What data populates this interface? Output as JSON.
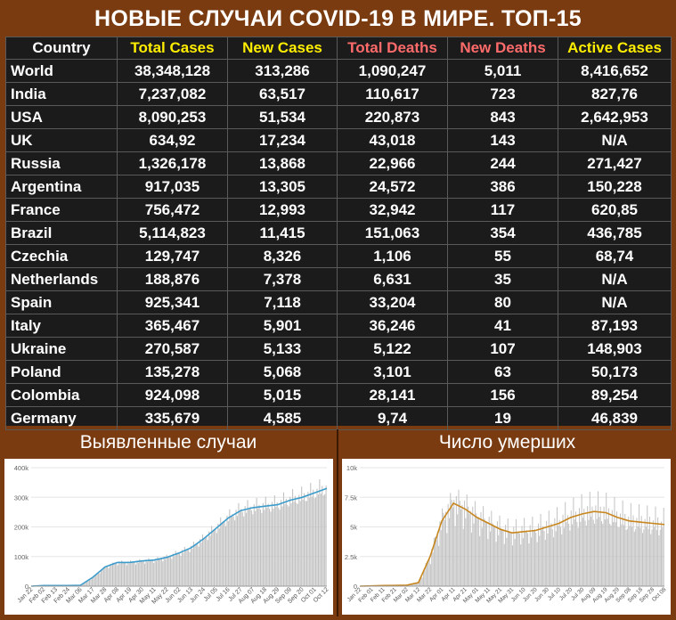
{
  "title": "НОВЫЕ СЛУЧАИ COVID-19 В МИРЕ. ТОП-15",
  "table": {
    "headers": [
      "Country",
      "Total Cases",
      "New Cases",
      "Total Deaths",
      "New Deaths",
      "Active Cases"
    ],
    "rows": [
      [
        "World",
        "38,348,128",
        "313,286",
        "1,090,247",
        "5,011",
        "8,416,652"
      ],
      [
        "India",
        "7,237,082",
        "63,517",
        "110,617",
        "723",
        "827,76"
      ],
      [
        "USA",
        "8,090,253",
        "51,534",
        "220,873",
        "843",
        "2,642,953"
      ],
      [
        "UK",
        "634,92",
        "17,234",
        "43,018",
        "143",
        "N/A"
      ],
      [
        "Russia",
        "1,326,178",
        "13,868",
        "22,966",
        "244",
        "271,427"
      ],
      [
        "Argentina",
        "917,035",
        "13,305",
        "24,572",
        "386",
        "150,228"
      ],
      [
        "France",
        "756,472",
        "12,993",
        "32,942",
        "117",
        "620,85"
      ],
      [
        "Brazil",
        "5,114,823",
        "11,415",
        "151,063",
        "354",
        "436,785"
      ],
      [
        "Czechia",
        "129,747",
        "8,326",
        "1,106",
        "55",
        "68,74"
      ],
      [
        "Netherlands",
        "188,876",
        "7,378",
        "6,631",
        "35",
        "N/A"
      ],
      [
        "Spain",
        "925,341",
        "7,118",
        "33,204",
        "80",
        "N/A"
      ],
      [
        "Italy",
        "365,467",
        "5,901",
        "36,246",
        "41",
        "87,193"
      ],
      [
        "Ukraine",
        "270,587",
        "5,133",
        "5,122",
        "107",
        "148,903"
      ],
      [
        "Poland",
        "135,278",
        "5,068",
        "3,101",
        "63",
        "50,173"
      ],
      [
        "Colombia",
        "924,098",
        "5,015",
        "28,141",
        "156",
        "89,254"
      ],
      [
        "Germany",
        "335,679",
        "4,585",
        "9,74",
        "19",
        "46,839"
      ]
    ]
  },
  "colors": {
    "background": "#7a3b10",
    "table_bg": "#1b1b1b",
    "header_yellow": "#ffee00",
    "header_red": "#ff6b6b",
    "cases_line": "#3b9ccc",
    "deaths_line": "#c8861e",
    "bars": "#c2c2c2"
  },
  "chart_data": [
    {
      "type": "bar",
      "title": "Выявленные случаи",
      "series": [
        {
          "type": "bar"
        },
        {
          "type": "line"
        }
      ],
      "categories": [
        "Jan 22",
        "Feb 02",
        "Feb 13",
        "Feb 24",
        "Mar 06",
        "Mar 17",
        "Mar 28",
        "Apr 08",
        "Apr 19",
        "Apr 30",
        "May 11",
        "May 22",
        "Jun 02",
        "Jun 13",
        "Jun 24",
        "Jul 05",
        "Jul 16",
        "Jul 27",
        "Aug 07",
        "Aug 18",
        "Aug 29",
        "Sep 09",
        "Sep 20",
        "Oct 01",
        "Oct 12"
      ],
      "yticks": [
        0,
        100000,
        200000,
        300000,
        400000
      ],
      "ytick_labels": [
        "0",
        "100k",
        "200k",
        "300k",
        "400k"
      ],
      "ylim": [
        0,
        400000
      ],
      "avg_values": [
        0,
        2000,
        2000,
        2000,
        3000,
        30000,
        65000,
        80000,
        80000,
        85000,
        88000,
        97000,
        112000,
        130000,
        160000,
        195000,
        230000,
        255000,
        265000,
        270000,
        275000,
        290000,
        300000,
        315000,
        330000
      ]
    },
    {
      "type": "bar",
      "title": "Число умерших",
      "series": [
        {
          "type": "bar"
        },
        {
          "type": "line"
        }
      ],
      "categories": [
        "Jan 22",
        "Feb 01",
        "Feb 11",
        "Feb 21",
        "Mar 02",
        "Mar 12",
        "Mar 22",
        "Apr 01",
        "Apr 11",
        "Apr 21",
        "May 01",
        "May 11",
        "May 21",
        "May 31",
        "Jun 10",
        "Jun 20",
        "Jun 30",
        "Jul 10",
        "Jul 20",
        "Jul 30",
        "Aug 09",
        "Aug 19",
        "Aug 29",
        "Sep 08",
        "Sep 18",
        "Sep 28",
        "Oct 08"
      ],
      "yticks": [
        0,
        2500,
        5000,
        7500,
        10000
      ],
      "ytick_labels": [
        "0",
        "2.5k",
        "5k",
        "7.5k",
        "10k"
      ],
      "ylim": [
        0,
        10000
      ],
      "avg_values": [
        0,
        20,
        50,
        60,
        80,
        300,
        2500,
        5500,
        7000,
        6500,
        5800,
        5300,
        4800,
        4500,
        4600,
        4700,
        5000,
        5300,
        5800,
        6100,
        6300,
        6200,
        5800,
        5500,
        5400,
        5300,
        5200
      ]
    }
  ]
}
